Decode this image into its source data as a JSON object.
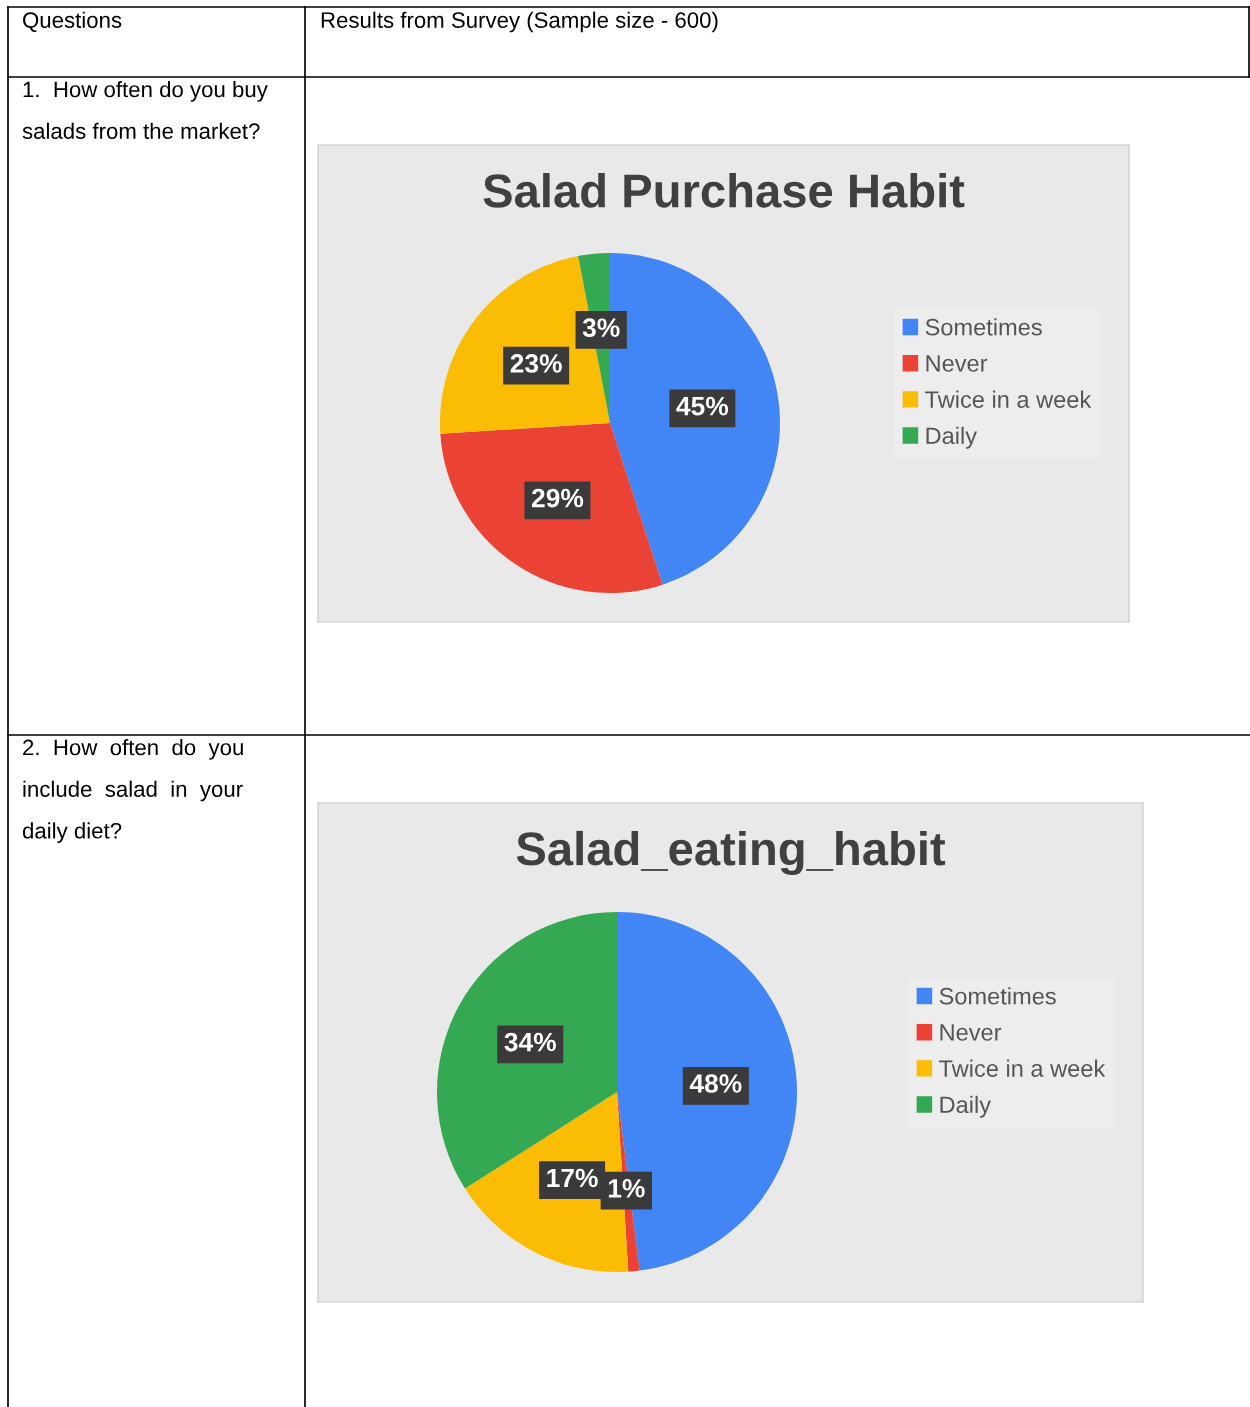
{
  "chart_data": [
    {
      "type": "pie",
      "title": "Salad Purchase Habit",
      "categories": [
        "Sometimes",
        "Never",
        "Twice in a week",
        "Daily"
      ],
      "values": [
        45,
        29,
        23,
        3
      ],
      "value_labels": [
        "45%",
        "29%",
        "23%",
        "3%"
      ],
      "colors": [
        "#4285f4",
        "#ea4335",
        "#fbbc04",
        "#34a853"
      ],
      "legend": "right",
      "annotations": [
        "Questions",
        "Results from Survey (Sample size - 600)",
        "1.  How often do you buy\nsalads from the market?"
      ]
    },
    {
      "type": "pie",
      "title": "Salad_eating_habit",
      "categories": [
        "Sometimes",
        "Never",
        "Twice in a week",
        "Daily"
      ],
      "values": [
        48,
        1,
        17,
        34
      ],
      "value_labels": [
        "48%",
        "1%",
        "17%",
        "34%"
      ],
      "colors": [
        "#4285f4",
        "#ea4335",
        "#fbbc04",
        "#34a853"
      ],
      "legend": "right",
      "annotations": [
        "2.  How  often  do  you\ninclude  salad  in  your\ndaily diet?"
      ]
    }
  ]
}
